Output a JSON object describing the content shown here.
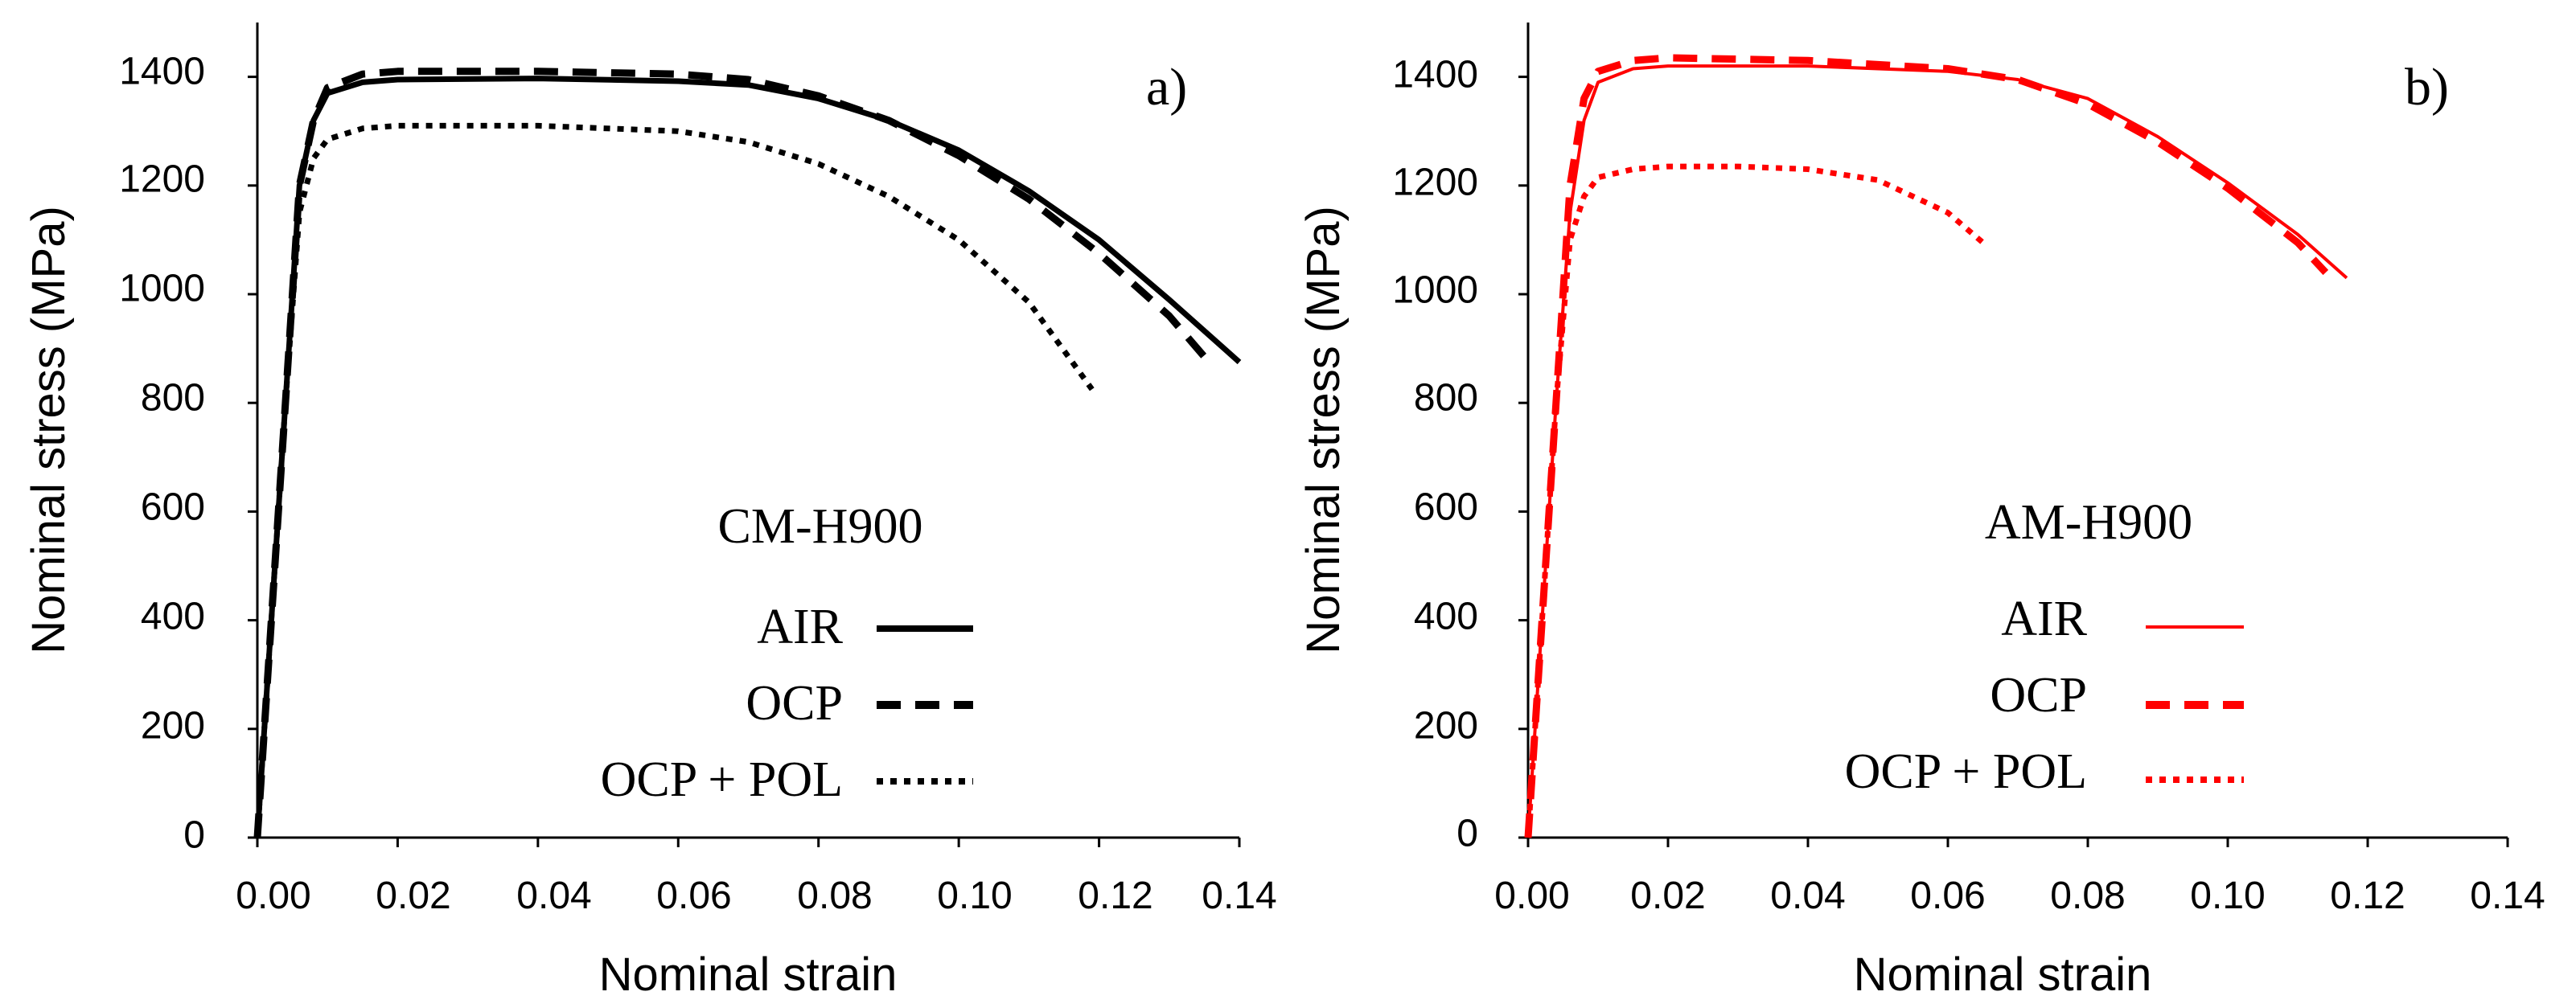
{
  "chart_data": [
    {
      "type": "line",
      "panel_label": "a)",
      "title": "CM-H900",
      "xlabel": "Nominal strain",
      "ylabel": "Nominal stress (MPa)",
      "xlim": [
        0,
        0.14
      ],
      "ylim": [
        0,
        1500
      ],
      "xticks": [
        "0.00",
        "0.02",
        "0.04",
        "0.06",
        "0.08",
        "0.10",
        "0.12",
        "0.14"
      ],
      "yticks": [
        "0",
        "200",
        "400",
        "600",
        "800",
        "1000",
        "1200",
        "1400"
      ],
      "color": "#000000",
      "series": [
        {
          "name": "AIR",
          "style": "solid",
          "points": [
            [
              0,
              0
            ],
            [
              0.002,
              400
            ],
            [
              0.004,
              800
            ],
            [
              0.006,
              1200
            ],
            [
              0.008,
              1320
            ],
            [
              0.01,
              1370
            ],
            [
              0.015,
              1390
            ],
            [
              0.02,
              1395
            ],
            [
              0.04,
              1397
            ],
            [
              0.06,
              1392
            ],
            [
              0.07,
              1385
            ],
            [
              0.08,
              1360
            ],
            [
              0.09,
              1320
            ],
            [
              0.1,
              1265
            ],
            [
              0.11,
              1190
            ],
            [
              0.12,
              1100
            ],
            [
              0.13,
              990
            ],
            [
              0.14,
              875
            ]
          ]
        },
        {
          "name": "OCP",
          "style": "dashed",
          "points": [
            [
              0,
              0
            ],
            [
              0.002,
              400
            ],
            [
              0.004,
              800
            ],
            [
              0.006,
              1200
            ],
            [
              0.008,
              1320
            ],
            [
              0.01,
              1380
            ],
            [
              0.015,
              1405
            ],
            [
              0.02,
              1410
            ],
            [
              0.04,
              1410
            ],
            [
              0.06,
              1405
            ],
            [
              0.07,
              1395
            ],
            [
              0.08,
              1365
            ],
            [
              0.09,
              1320
            ],
            [
              0.1,
              1255
            ],
            [
              0.11,
              1175
            ],
            [
              0.12,
              1075
            ],
            [
              0.13,
              960
            ],
            [
              0.135,
              885
            ]
          ]
        },
        {
          "name": "OCP + POL",
          "style": "dotted",
          "points": [
            [
              0,
              0
            ],
            [
              0.002,
              400
            ],
            [
              0.004,
              800
            ],
            [
              0.006,
              1150
            ],
            [
              0.008,
              1250
            ],
            [
              0.01,
              1285
            ],
            [
              0.015,
              1305
            ],
            [
              0.02,
              1310
            ],
            [
              0.04,
              1310
            ],
            [
              0.06,
              1300
            ],
            [
              0.07,
              1280
            ],
            [
              0.08,
              1240
            ],
            [
              0.09,
              1180
            ],
            [
              0.1,
              1100
            ],
            [
              0.11,
              985
            ],
            [
              0.119,
              825
            ]
          ]
        }
      ]
    },
    {
      "type": "line",
      "panel_label": "b)",
      "title": "AM-H900",
      "xlabel": "Nominal strain",
      "ylabel": "Nominal stress (MPa)",
      "xlim": [
        0,
        0.14
      ],
      "ylim": [
        0,
        1500
      ],
      "xticks": [
        "0.00",
        "0.02",
        "0.04",
        "0.06",
        "0.08",
        "0.10",
        "0.12",
        "0.14"
      ],
      "yticks": [
        "0",
        "200",
        "400",
        "600",
        "800",
        "1000",
        "1200",
        "1400"
      ],
      "color": "#ff0000",
      "series": [
        {
          "name": "AIR",
          "style": "solid",
          "points": [
            [
              0,
              0
            ],
            [
              0.002,
              400
            ],
            [
              0.004,
              800
            ],
            [
              0.006,
              1150
            ],
            [
              0.008,
              1320
            ],
            [
              0.01,
              1390
            ],
            [
              0.015,
              1415
            ],
            [
              0.02,
              1420
            ],
            [
              0.04,
              1420
            ],
            [
              0.06,
              1410
            ],
            [
              0.07,
              1395
            ],
            [
              0.08,
              1360
            ],
            [
              0.09,
              1290
            ],
            [
              0.1,
              1205
            ],
            [
              0.11,
              1110
            ],
            [
              0.117,
              1030
            ]
          ]
        },
        {
          "name": "OCP",
          "style": "dashed",
          "points": [
            [
              0,
              0
            ],
            [
              0.002,
              400
            ],
            [
              0.004,
              800
            ],
            [
              0.006,
              1200
            ],
            [
              0.008,
              1360
            ],
            [
              0.01,
              1410
            ],
            [
              0.015,
              1430
            ],
            [
              0.02,
              1435
            ],
            [
              0.04,
              1430
            ],
            [
              0.06,
              1415
            ],
            [
              0.07,
              1395
            ],
            [
              0.08,
              1350
            ],
            [
              0.09,
              1280
            ],
            [
              0.1,
              1195
            ],
            [
              0.11,
              1095
            ],
            [
              0.114,
              1040
            ]
          ]
        },
        {
          "name": "OCP + POL",
          "style": "dotted",
          "points": [
            [
              0,
              0
            ],
            [
              0.002,
              400
            ],
            [
              0.004,
              800
            ],
            [
              0.006,
              1100
            ],
            [
              0.008,
              1180
            ],
            [
              0.01,
              1215
            ],
            [
              0.015,
              1230
            ],
            [
              0.02,
              1235
            ],
            [
              0.03,
              1235
            ],
            [
              0.04,
              1230
            ],
            [
              0.05,
              1210
            ],
            [
              0.06,
              1150
            ],
            [
              0.065,
              1095
            ]
          ]
        }
      ]
    }
  ]
}
